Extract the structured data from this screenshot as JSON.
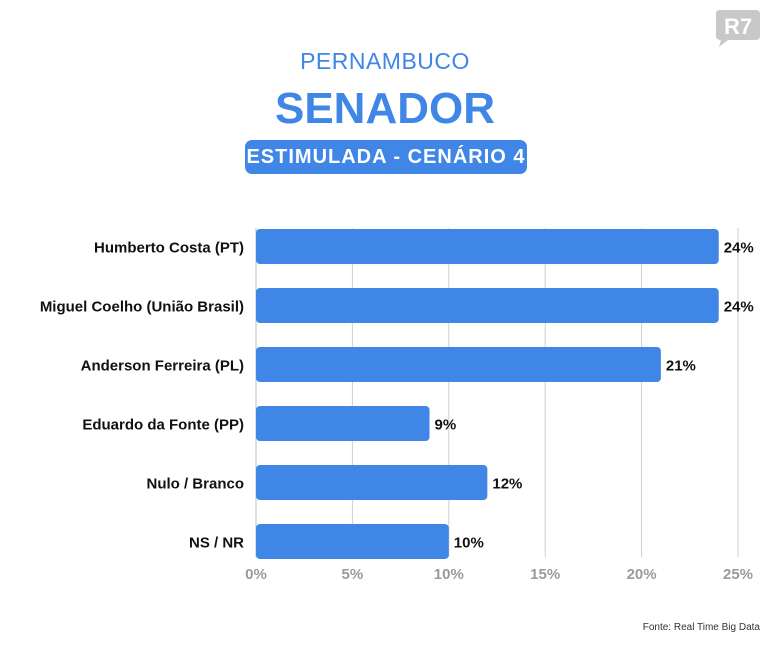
{
  "brand": {
    "logo_text": "R7"
  },
  "header": {
    "subtitle": "PERNAMBUCO",
    "title": "SENADOR",
    "badge": "ESTIMULADA - CENÁRIO 4"
  },
  "colors": {
    "bar": "#3f86e6",
    "grid": "#cfcfcf",
    "axis_label": "#9a9a9a"
  },
  "chart_data": {
    "type": "bar",
    "orientation": "horizontal",
    "categories": [
      "Humberto Costa (PT)",
      "Miguel Coelho (União Brasil)",
      "Anderson Ferreira (PL)",
      "Eduardo da Fonte (PP)",
      "Nulo / Branco",
      "NS / NR"
    ],
    "values": [
      24,
      24,
      21,
      9,
      12,
      10
    ],
    "data_labels": [
      "24%",
      "24%",
      "21%",
      "9%",
      "12%",
      "10%"
    ],
    "xlim": [
      0,
      25
    ],
    "xticks": [
      "0%",
      "5%",
      "10%",
      "15%",
      "20%",
      "25%"
    ],
    "grid": true
  },
  "footer": {
    "source": "Fonte: Real Time Big Data"
  }
}
